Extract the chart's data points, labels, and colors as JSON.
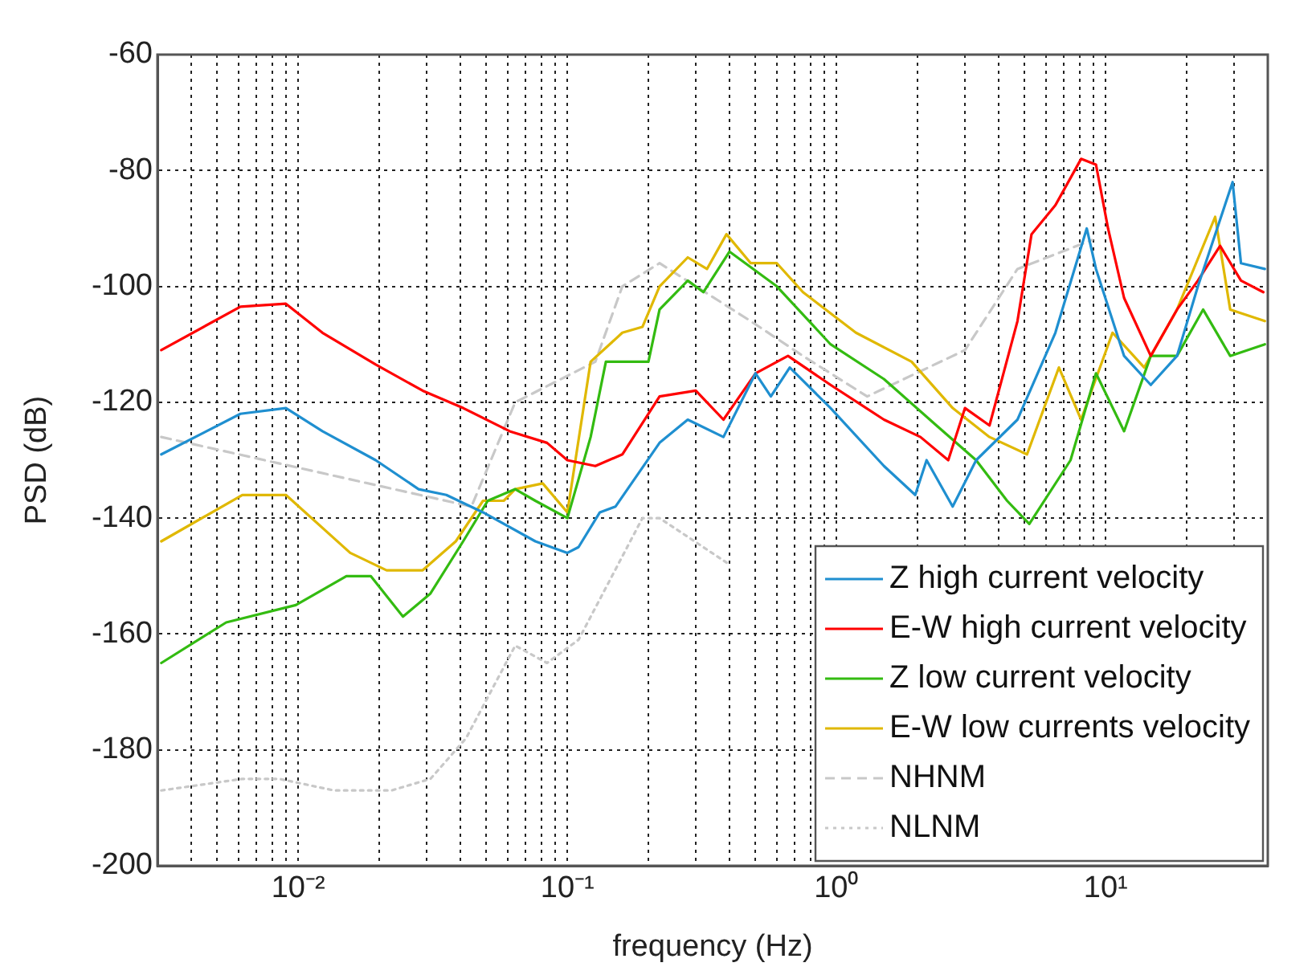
{
  "chart_data": {
    "type": "line",
    "xlabel": "frequency (Hz)",
    "ylabel": "PSD (dB)",
    "log": "x",
    "grid": true,
    "legend": "bottom right",
    "marker": "none",
    "xlim": [
      0.003,
      40
    ],
    "ylim": [
      -200,
      -60
    ],
    "xticks": [
      {
        "value": 0.004,
        "label": null
      },
      {
        "value": 0.005,
        "label": null
      },
      {
        "value": 0.006,
        "label": null
      },
      {
        "value": 0.007,
        "label": null
      },
      {
        "value": 0.008,
        "label": null
      },
      {
        "value": 0.009,
        "label": null
      },
      {
        "value": 0.01,
        "label": "10⁻²"
      },
      {
        "value": 0.02,
        "label": null
      },
      {
        "value": 0.03,
        "label": null
      },
      {
        "value": 0.04,
        "label": null
      },
      {
        "value": 0.05,
        "label": null
      },
      {
        "value": 0.06,
        "label": null
      },
      {
        "value": 0.07,
        "label": null
      },
      {
        "value": 0.08,
        "label": null
      },
      {
        "value": 0.09,
        "label": null
      },
      {
        "value": 0.1,
        "label": "10⁻¹"
      },
      {
        "value": 0.2,
        "label": null
      },
      {
        "value": 0.3,
        "label": null
      },
      {
        "value": 0.4,
        "label": null
      },
      {
        "value": 0.5,
        "label": null
      },
      {
        "value": 0.6,
        "label": null
      },
      {
        "value": 0.7,
        "label": null
      },
      {
        "value": 0.8,
        "label": null
      },
      {
        "value": 0.9,
        "label": null
      },
      {
        "value": 1,
        "label": "10⁰"
      },
      {
        "value": 2,
        "label": null
      },
      {
        "value": 3,
        "label": null
      },
      {
        "value": 4,
        "label": null
      },
      {
        "value": 5,
        "label": null
      },
      {
        "value": 6,
        "label": null
      },
      {
        "value": 7,
        "label": null
      },
      {
        "value": 8,
        "label": null
      },
      {
        "value": 9,
        "label": null
      },
      {
        "value": 10,
        "label": "10¹"
      },
      {
        "value": 20,
        "label": null
      },
      {
        "value": 30,
        "label": null
      }
    ],
    "yticks": [
      -200,
      -180,
      -160,
      -140,
      -120,
      -100,
      -80,
      -60
    ],
    "series": [
      {
        "name": "Z high current velocity",
        "color": "#1f8fd0",
        "line_style": "solid",
        "x": [
          0.0031,
          0.0061,
          0.009,
          0.0123,
          0.0194,
          0.028,
          0.0355,
          0.0486,
          0.076,
          0.1,
          0.11,
          0.132,
          0.151,
          0.22,
          0.28,
          0.38,
          0.5,
          0.57,
          0.67,
          0.95,
          1.5,
          1.96,
          2.16,
          2.7,
          3.3,
          4.7,
          6.5,
          8.5,
          9.2,
          11.7,
          14.7,
          18.4,
          22,
          29.6,
          31.8,
          39
        ],
        "values": [
          -129,
          -122,
          -121,
          -125,
          -130,
          -135,
          -136,
          -139,
          -144,
          -146,
          -145,
          -139,
          -138,
          -127,
          -123,
          -126,
          -115,
          -119,
          -114,
          -121,
          -131,
          -136,
          -130,
          -138,
          -130,
          -123,
          -108,
          -90,
          -97,
          -112,
          -117,
          -112,
          -100,
          -82,
          -96,
          -97
        ]
      },
      {
        "name": "E-W high current velocity",
        "color": "#ff0000",
        "line_style": "solid",
        "x": [
          0.0031,
          0.0061,
          0.009,
          0.0123,
          0.0194,
          0.029,
          0.041,
          0.061,
          0.084,
          0.1,
          0.127,
          0.16,
          0.22,
          0.3,
          0.38,
          0.5,
          0.66,
          0.95,
          1.5,
          2.05,
          2.6,
          3.0,
          3.7,
          4.7,
          5.3,
          6.5,
          8.1,
          9.2,
          10.2,
          11.7,
          14.7,
          18.4,
          22,
          26.6,
          31.8,
          38.5
        ],
        "values": [
          -111,
          -103.5,
          -103,
          -108,
          -113.5,
          -118,
          -121,
          -125,
          -127,
          -130,
          -131,
          -129,
          -119,
          -118,
          -123,
          -115,
          -112,
          -117,
          -123,
          -126,
          -130,
          -121,
          -124,
          -106,
          -91,
          -86,
          -78,
          -79,
          -90,
          -102,
          -112,
          -104,
          -99,
          -93,
          -99,
          -101
        ]
      },
      {
        "name": "Z low current velocity",
        "color": "#33bb11",
        "line_style": "solid",
        "x": [
          0.0031,
          0.0054,
          0.0098,
          0.0151,
          0.0186,
          0.0245,
          0.031,
          0.041,
          0.0506,
          0.064,
          0.076,
          0.1,
          0.122,
          0.139,
          0.2,
          0.22,
          0.28,
          0.32,
          0.4,
          0.6,
          0.95,
          1.5,
          2.35,
          3.3,
          4.3,
          5.2,
          7.4,
          9.2,
          11.7,
          14.7,
          18.4,
          23,
          29,
          39
        ],
        "values": [
          -165,
          -158,
          -155,
          -150,
          -150,
          -157,
          -153,
          -144,
          -137,
          -135,
          -137,
          -140,
          -126,
          -113,
          -113,
          -104,
          -99,
          -101,
          -94,
          -100,
          -110,
          -116,
          -124,
          -130,
          -137,
          -141,
          -130,
          -115,
          -125,
          -112,
          -112,
          -104,
          -112,
          -110
        ]
      },
      {
        "name": "E-W low currents velocity",
        "color": "#e0b800",
        "line_style": "solid",
        "x": [
          0.0031,
          0.0062,
          0.009,
          0.0156,
          0.0213,
          0.029,
          0.0385,
          0.0486,
          0.058,
          0.064,
          0.081,
          0.1,
          0.122,
          0.16,
          0.19,
          0.22,
          0.28,
          0.33,
          0.39,
          0.48,
          0.6,
          0.75,
          1.18,
          1.9,
          2.7,
          3.7,
          5.1,
          6.7,
          8.1,
          10.6,
          13.9,
          18.4,
          25.5,
          29,
          39
        ],
        "values": [
          -144,
          -136,
          -136,
          -146,
          -149,
          -149,
          -144,
          -137,
          -137,
          -135,
          -134,
          -139,
          -113,
          -108,
          -107,
          -100,
          -95,
          -97,
          -91,
          -96,
          -96,
          -101,
          -108,
          -113,
          -121,
          -126,
          -129,
          -114,
          -123,
          -108,
          -114,
          -104,
          -88,
          -104,
          -106
        ]
      },
      {
        "name": "NHNM",
        "color": "#c8c8c8",
        "line_style": "dashed",
        "x": [
          0.0031,
          0.044,
          0.064,
          0.127,
          0.16,
          0.22,
          0.48,
          0.75,
          1.3,
          3.0,
          4.7,
          8.9
        ],
        "values": [
          -126,
          -138,
          -120,
          -113,
          -100,
          -96,
          -106,
          -112,
          -119,
          -111,
          -97,
          -92
        ]
      },
      {
        "name": "NLNM",
        "color": "#c8c8c8",
        "line_style": "dotted",
        "x": [
          0.0031,
          0.0062,
          0.0085,
          0.0136,
          0.0222,
          0.031,
          0.042,
          0.064,
          0.084,
          0.11,
          0.19,
          0.22,
          0.4
        ],
        "values": [
          -187,
          -185,
          -185,
          -187,
          -187,
          -185,
          -178,
          -162,
          -165,
          -161,
          -140,
          -140,
          -148
        ]
      }
    ]
  }
}
